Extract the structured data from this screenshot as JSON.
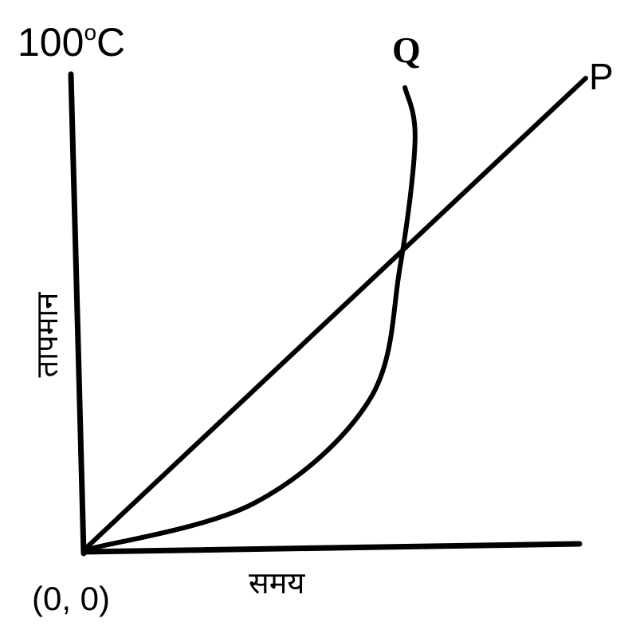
{
  "chart_data": {
    "type": "line",
    "y_max_label": "100",
    "y_max_label_sup": "o",
    "y_max_label_unit": "C",
    "origin_label": "(0, 0)",
    "xlabel": "समय",
    "ylabel": "तापमान",
    "series": [
      {
        "name": "P",
        "shape": "straight-line",
        "points": [
          [
            0,
            0
          ],
          [
            1,
            1
          ]
        ]
      },
      {
        "name": "Q",
        "shape": "convex-curve",
        "points": [
          [
            0,
            0
          ],
          [
            0.34,
            0.1
          ],
          [
            0.57,
            0.32
          ],
          [
            0.63,
            0.6
          ],
          [
            0.66,
            0.87
          ],
          [
            0.64,
            0.98
          ]
        ]
      }
    ],
    "grid": false,
    "axis_color": "#000000",
    "line_color": "#000000"
  }
}
